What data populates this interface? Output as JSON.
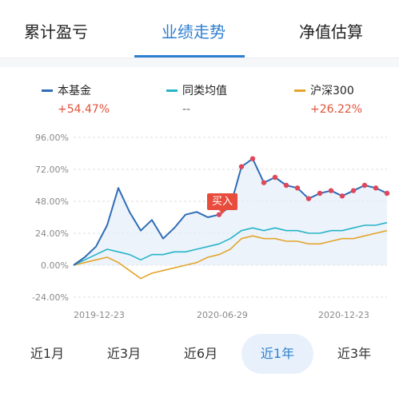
{
  "tabs": [
    {
      "label": "累计盈亏",
      "active": false
    },
    {
      "label": "业绩走势",
      "active": true
    },
    {
      "label": "净值估算",
      "active": false
    }
  ],
  "legend": [
    {
      "name": "本基金",
      "value": "+54.47%",
      "color": "#2f6db5",
      "value_color": "#e0533a"
    },
    {
      "name": "同类均值",
      "value": "--",
      "color": "#26b4c8",
      "value_color": "#666666"
    },
    {
      "name": "沪深300",
      "value": "+26.22%",
      "color": "#e3a52c",
      "value_color": "#e0533a"
    }
  ],
  "buy_label": "买入",
  "ranges": [
    {
      "label": "近1月",
      "active": false
    },
    {
      "label": "近3月",
      "active": false
    },
    {
      "label": "近6月",
      "active": false
    },
    {
      "label": "近1年",
      "active": true
    },
    {
      "label": "近3年",
      "active": false
    }
  ],
  "chart_data": {
    "type": "line",
    "x_tick_labels": [
      "2019-12-23",
      "2020-06-29",
      "2020-12-23"
    ],
    "y_tick_labels": [
      "96.00%",
      "72.00%",
      "48.00%",
      "24.00%",
      "0.00%",
      "-24.00%"
    ],
    "ylim": [
      -24,
      96
    ],
    "grid": true,
    "x": [
      "2019-12-23",
      "2020-01-06",
      "2020-01-20",
      "2020-02-03",
      "2020-02-17",
      "2020-03-02",
      "2020-03-16",
      "2020-03-30",
      "2020-04-13",
      "2020-04-27",
      "2020-05-11",
      "2020-05-25",
      "2020-06-08",
      "2020-06-22",
      "2020-06-29",
      "2020-07-06",
      "2020-07-13",
      "2020-07-27",
      "2020-08-10",
      "2020-08-24",
      "2020-09-07",
      "2020-09-21",
      "2020-10-05",
      "2020-10-19",
      "2020-11-02",
      "2020-11-16",
      "2020-11-30",
      "2020-12-14",
      "2020-12-23"
    ],
    "series": [
      {
        "name": "本基金",
        "color": "#2f6db5",
        "values": [
          0,
          6,
          14,
          30,
          58,
          40,
          26,
          34,
          20,
          28,
          38,
          40,
          36,
          38,
          44,
          74,
          80,
          62,
          66,
          60,
          58,
          50,
          54,
          56,
          52,
          56,
          60,
          58,
          54
        ]
      },
      {
        "name": "同类均值",
        "color": "#26b4c8",
        "values": [
          0,
          4,
          8,
          12,
          10,
          8,
          4,
          8,
          8,
          10,
          10,
          12,
          14,
          16,
          20,
          26,
          28,
          26,
          28,
          26,
          26,
          24,
          24,
          26,
          26,
          28,
          30,
          30,
          32
        ]
      },
      {
        "name": "沪深300",
        "color": "#e3a52c",
        "values": [
          0,
          2,
          4,
          6,
          2,
          -4,
          -10,
          -6,
          -4,
          -2,
          0,
          2,
          6,
          8,
          12,
          20,
          22,
          20,
          20,
          18,
          18,
          16,
          16,
          18,
          20,
          20,
          22,
          24,
          26
        ]
      }
    ],
    "buy_marker_index": 13
  }
}
